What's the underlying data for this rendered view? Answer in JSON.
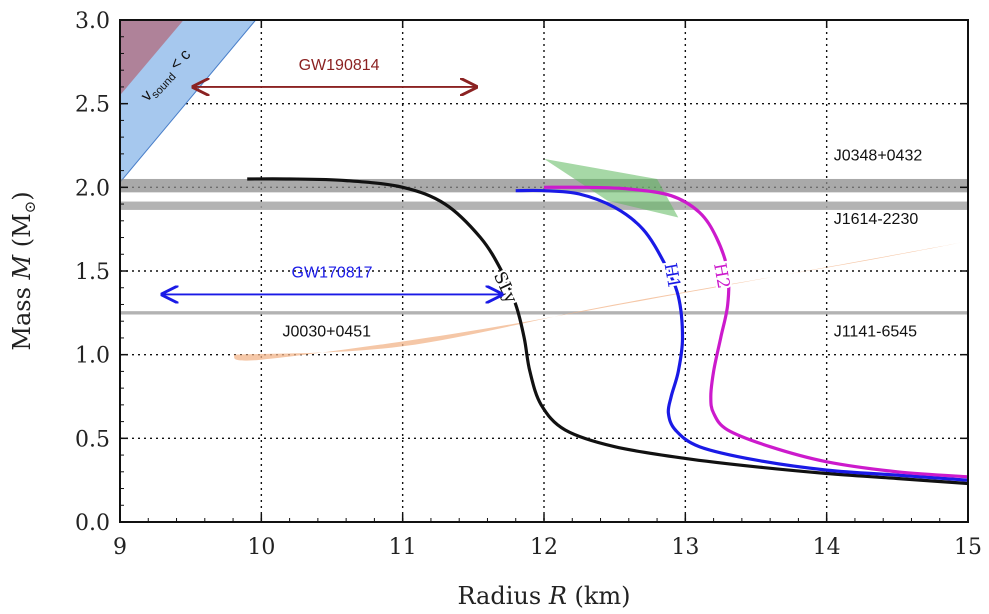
{
  "chart_data": {
    "type": "line",
    "xlabel": {
      "prefix": "Radius ",
      "var": "R",
      "suffix": " (km)"
    },
    "ylabel": {
      "prefix": "Mass ",
      "var": "M",
      "suffix": " (M",
      "sub": "⊙",
      "close": ")"
    },
    "xlim": [
      9,
      15
    ],
    "ylim": [
      0,
      3
    ],
    "xticks": [
      9,
      10,
      11,
      12,
      13,
      14,
      15
    ],
    "yticks": [
      "0.0",
      "0.5",
      "1.0",
      "1.5",
      "2.0",
      "2.5",
      "3.0"
    ],
    "grid": "dotted",
    "series": [
      {
        "name": "SLy",
        "color": "#111111",
        "points": [
          [
            9.9,
            2.05
          ],
          [
            10.2,
            2.05
          ],
          [
            10.6,
            2.04
          ],
          [
            11.0,
            2.0
          ],
          [
            11.3,
            1.9
          ],
          [
            11.55,
            1.7
          ],
          [
            11.7,
            1.5
          ],
          [
            11.8,
            1.3
          ],
          [
            11.86,
            1.1
          ],
          [
            11.9,
            0.9
          ],
          [
            11.98,
            0.7
          ],
          [
            12.15,
            0.55
          ],
          [
            12.5,
            0.45
          ],
          [
            13.0,
            0.38
          ],
          [
            13.5,
            0.33
          ],
          [
            14.0,
            0.29
          ],
          [
            14.5,
            0.26
          ],
          [
            15.0,
            0.23
          ]
        ],
        "label": "SLy",
        "label_at": [
          11.72,
          1.4
        ],
        "label_rot": 65
      },
      {
        "name": "H1",
        "color": "#1a1ae6",
        "points": [
          [
            11.8,
            1.98
          ],
          [
            12.0,
            1.98
          ],
          [
            12.25,
            1.96
          ],
          [
            12.5,
            1.88
          ],
          [
            12.7,
            1.75
          ],
          [
            12.85,
            1.55
          ],
          [
            12.95,
            1.35
          ],
          [
            12.98,
            1.1
          ],
          [
            12.95,
            0.9
          ],
          [
            12.9,
            0.75
          ],
          [
            12.88,
            0.65
          ],
          [
            12.93,
            0.55
          ],
          [
            13.1,
            0.45
          ],
          [
            13.5,
            0.37
          ],
          [
            14.0,
            0.31
          ],
          [
            14.5,
            0.28
          ],
          [
            15.0,
            0.25
          ]
        ],
        "label": "H1",
        "label_at": [
          12.9,
          1.47
        ],
        "label_rot": 80
      },
      {
        "name": "H2",
        "color": "#cc1acc",
        "points": [
          [
            12.0,
            2.0
          ],
          [
            12.3,
            2.0
          ],
          [
            12.6,
            1.99
          ],
          [
            12.9,
            1.95
          ],
          [
            13.1,
            1.85
          ],
          [
            13.22,
            1.7
          ],
          [
            13.3,
            1.5
          ],
          [
            13.3,
            1.3
          ],
          [
            13.25,
            1.1
          ],
          [
            13.2,
            0.9
          ],
          [
            13.18,
            0.75
          ],
          [
            13.2,
            0.65
          ],
          [
            13.3,
            0.55
          ],
          [
            13.6,
            0.45
          ],
          [
            14.0,
            0.36
          ],
          [
            14.5,
            0.3
          ],
          [
            15.0,
            0.27
          ]
        ],
        "label": "H2",
        "label_at": [
          13.25,
          1.47
        ],
        "label_rot": 80
      }
    ],
    "pulsar_bands": [
      {
        "name": "J0348+0432",
        "mass": 2.01,
        "err": 0.04,
        "color": "#8c8c8c",
        "opacity": 0.75
      },
      {
        "name": "J1614-2230",
        "mass": 1.89,
        "err": 0.025,
        "color": "#a6a6a6",
        "opacity": 0.85
      },
      {
        "name": "J1141-6545",
        "mass": 1.25,
        "err": 0.01,
        "color": "#a6a6a6",
        "opacity": 0.85
      }
    ],
    "band_labels": [
      {
        "text": "J0348+0432",
        "at": [
          14.05,
          2.16
        ]
      },
      {
        "text": "J1614-2230",
        "at": [
          14.05,
          1.78
        ]
      },
      {
        "text": "J1141-6545",
        "at": [
          14.05,
          1.11
        ]
      }
    ],
    "ellipse": {
      "name": "J0030+0451",
      "color": "#f2b48a",
      "opacity": 0.75,
      "polygon": [
        [
          9.8,
          1.0
        ],
        [
          11.0,
          1.05
        ],
        [
          12.5,
          1.3
        ],
        [
          14.2,
          1.55
        ],
        [
          14.95,
          1.67
        ],
        [
          14.5,
          1.6
        ],
        [
          13.0,
          1.37
        ],
        [
          11.4,
          1.13
        ],
        [
          10.0,
          0.97
        ]
      ],
      "label": "J0030+0451",
      "label_at": [
        10.15,
        1.11
      ]
    },
    "green_region": {
      "color": "#5cb85c",
      "opacity": 0.55,
      "polygon": [
        [
          12.0,
          2.17
        ],
        [
          12.8,
          2.05
        ],
        [
          12.95,
          1.82
        ],
        [
          12.45,
          1.92
        ]
      ]
    },
    "causality_region": {
      "label_main": "v",
      "label_sub": "sound",
      "label_rest": " < c",
      "blue_color": "#a6c8ee",
      "red_color": "#b07a8f",
      "blue_polygon": [
        [
          9.0,
          3.0
        ],
        [
          9.96,
          3.0
        ],
        [
          9.0,
          2.03
        ]
      ],
      "red_polygon": [
        [
          9.0,
          3.0
        ],
        [
          9.45,
          3.0
        ],
        [
          9.0,
          2.55
        ]
      ],
      "label_at": [
        9.35,
        2.65
      ]
    },
    "arrows": [
      {
        "name": "GW190814",
        "color": "#8b2222",
        "from": [
          9.52,
          2.6
        ],
        "to": [
          11.52,
          2.6
        ],
        "label": "GW190814",
        "label_at": [
          10.55,
          2.7
        ]
      },
      {
        "name": "GW170817",
        "color": "#1a1ae6",
        "from": [
          9.3,
          1.36
        ],
        "to": [
          11.7,
          1.36
        ],
        "label": "GW170817",
        "label_at": [
          10.5,
          1.46
        ]
      }
    ]
  }
}
